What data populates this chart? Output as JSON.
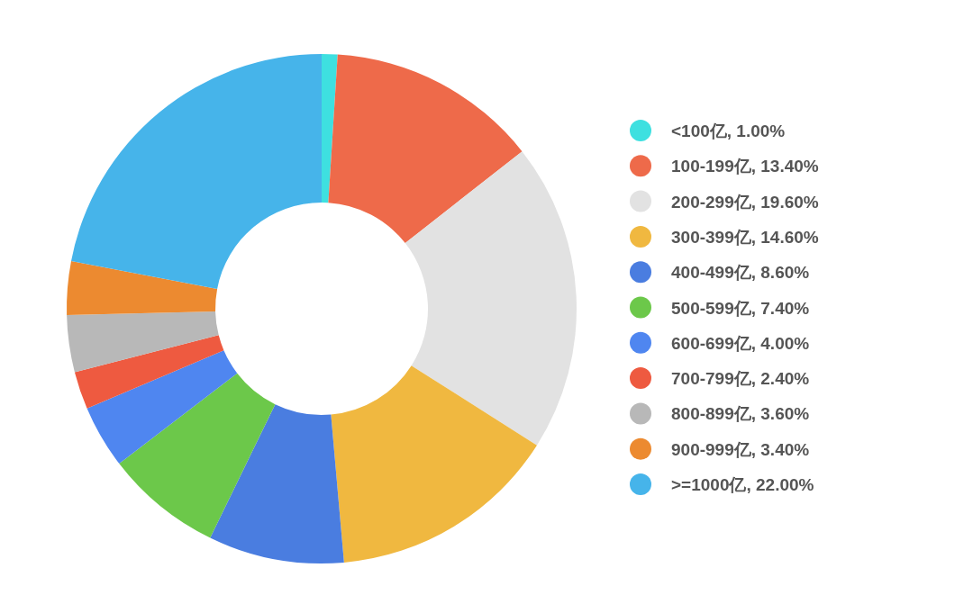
{
  "chart_data": {
    "type": "donut",
    "categories": [
      "<100亿",
      "100-199亿",
      "200-299亿",
      "300-399亿",
      "400-499亿",
      "500-599亿",
      "600-699亿",
      "700-799亿",
      "800-899亿",
      "900-999亿",
      ">=1000亿"
    ],
    "values": [
      1.0,
      13.4,
      19.6,
      14.6,
      8.6,
      7.4,
      4.0,
      2.4,
      3.6,
      3.4,
      22.0
    ],
    "value_labels": [
      "1.00%",
      "13.40%",
      "19.60%",
      "14.60%",
      "8.60%",
      "7.40%",
      "4.00%",
      "2.40%",
      "3.60%",
      "3.40%",
      "22.00%"
    ],
    "colors": [
      "#3ee0e0",
      "#ee6a4a",
      "#e2e2e2",
      "#f0b840",
      "#4a7de0",
      "#6cc84a",
      "#4f86f0",
      "#ee5a40",
      "#b8b8b8",
      "#ec8a30",
      "#46b4ea"
    ],
    "legend": "right"
  }
}
